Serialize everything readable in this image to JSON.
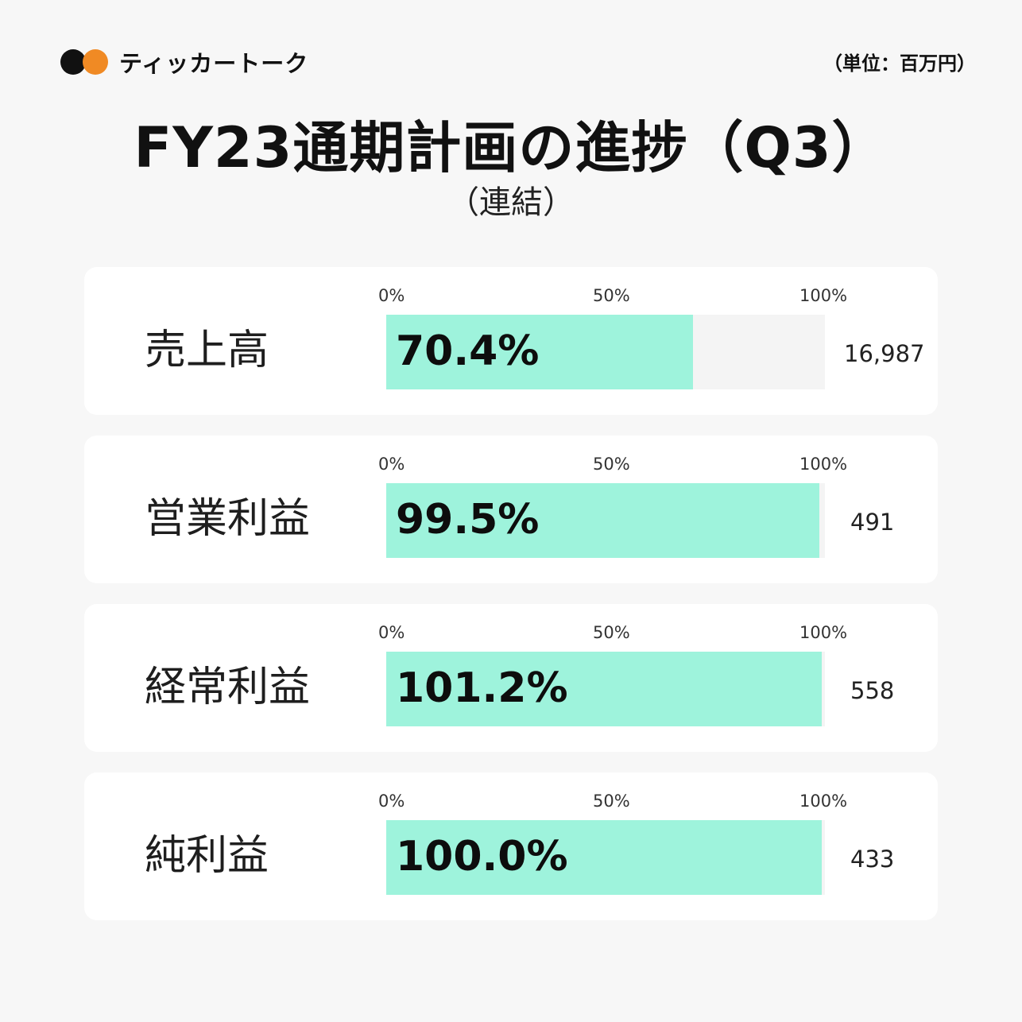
{
  "brand": {
    "name": "ティッカートーク"
  },
  "unit_note": "（単位：百万円）",
  "title": "FY23通期計画の進捗（Q3）",
  "subtitle": "（連結）",
  "colors": {
    "fill": "#9ef3dc",
    "track": "#f4f4f4",
    "card": "#ffffff",
    "background": "#f7f7f7",
    "brand_orange": "#f08a24"
  },
  "chart_data": {
    "type": "bar",
    "orientation": "horizontal",
    "title": "FY23通期計画の進捗（Q3）",
    "subtitle": "（連結）",
    "unit": "（単位：百万円）",
    "xlim": [
      0,
      100
    ],
    "tick_labels": [
      "0%",
      "50%",
      "100%"
    ],
    "rows": [
      {
        "label": "売上高",
        "progress": 70.4,
        "progress_label": "70.4%",
        "value_label": "16,987"
      },
      {
        "label": "営業利益",
        "progress": 99.5,
        "progress_label": "99.5%",
        "value_label": "491"
      },
      {
        "label": "経常利益",
        "progress": 101.2,
        "progress_label": "101.2%",
        "value_label": "558"
      },
      {
        "label": "純利益",
        "progress": 100.0,
        "progress_label": "100.0%",
        "value_label": "433"
      }
    ]
  }
}
